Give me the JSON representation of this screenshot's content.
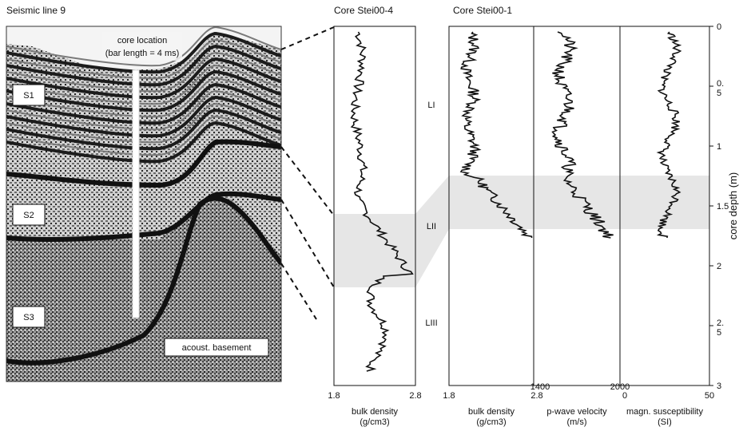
{
  "titles": {
    "seismic": "Seismic line 9",
    "core4": "Core Stei00-4",
    "core1": "Core Stei00-1"
  },
  "seismic_annotations": {
    "core_location": "core location",
    "bar_length": "(bar length = 4 ms)",
    "units": [
      "S1",
      "S2",
      "S3"
    ],
    "basement": "acoust. basement"
  },
  "lithologic_units": [
    "LI",
    "LII",
    "LIII"
  ],
  "depth_axis": {
    "label": "core depth (m)",
    "ticks": [
      "0",
      "0.\n5",
      "1",
      "1.5",
      "2",
      "2.\n5",
      "3"
    ]
  },
  "panels": [
    {
      "id": "core4-density",
      "xlabel_1": "bulk density",
      "xlabel_2": "(g/cm3)",
      "xmin": "1.8",
      "xmax": "2.8"
    },
    {
      "id": "core1-density",
      "xlabel_1": "bulk density",
      "xlabel_2": "(g/cm3)",
      "xmin": "1.8",
      "xmax": "2.8"
    },
    {
      "id": "core1-pwave",
      "xlabel_1": "p-wave velocity",
      "xlabel_2": "(m/s)",
      "xmin": "1400",
      "xmax": "2000"
    },
    {
      "id": "core1-susc",
      "xlabel_1": "magn. susceptibility",
      "xlabel_2": "(SI)",
      "xmin": "0",
      "xmax": "50"
    }
  ],
  "colors": {
    "shade": "#e6e6e6",
    "ink": "#111111"
  }
}
